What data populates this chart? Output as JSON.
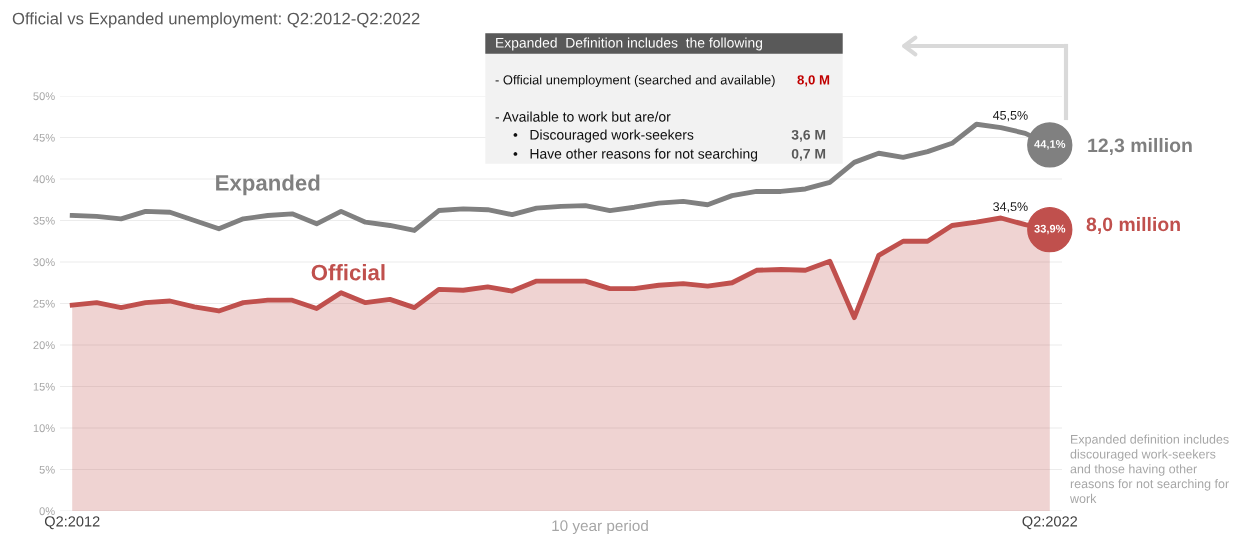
{
  "chart_data": {
    "type": "line",
    "title": "Official vs Expanded unemployment: Q2:2012-Q2:2022",
    "categories": [
      "Q2:2012",
      null,
      null,
      null,
      null,
      null,
      null,
      null,
      null,
      null,
      null,
      null,
      null,
      null,
      null,
      null,
      null,
      null,
      null,
      null,
      null,
      null,
      null,
      null,
      null,
      null,
      null,
      null,
      null,
      null,
      null,
      null,
      null,
      null,
      null,
      null,
      null,
      null,
      null,
      null,
      "Q2:2022"
    ],
    "series": [
      {
        "name": "Expanded",
        "color": "#808080",
        "values": [
          35.6,
          35.5,
          35.2,
          36.1,
          36.0,
          35.0,
          34.0,
          35.2,
          35.6,
          35.8,
          34.6,
          36.1,
          34.8,
          34.4,
          33.8,
          36.2,
          36.4,
          36.3,
          35.7,
          36.5,
          36.7,
          36.8,
          36.2,
          36.6,
          37.1,
          37.3,
          36.9,
          38.0,
          38.5,
          38.5,
          38.8,
          39.6,
          42.0,
          43.1,
          42.6,
          43.3,
          44.3,
          46.6,
          46.2,
          45.5,
          44.1
        ],
        "value_labels": [
          null,
          null,
          null,
          null,
          null,
          null,
          null,
          null,
          null,
          null,
          null,
          null,
          null,
          null,
          null,
          null,
          null,
          null,
          null,
          null,
          null,
          null,
          null,
          null,
          null,
          null,
          null,
          null,
          null,
          null,
          null,
          null,
          null,
          null,
          null,
          null,
          null,
          null,
          null,
          "45,5%",
          "44,1%"
        ]
      },
      {
        "name": "Official",
        "type": "area",
        "color": "#c0504d",
        "values": [
          24.8,
          25.1,
          24.5,
          25.1,
          25.3,
          24.6,
          24.1,
          25.1,
          25.4,
          25.4,
          24.4,
          26.3,
          25.1,
          25.5,
          24.5,
          26.7,
          26.6,
          27.0,
          26.5,
          27.7,
          27.7,
          27.7,
          26.8,
          26.8,
          27.2,
          27.4,
          27.1,
          27.5,
          29.0,
          29.1,
          29.0,
          30.1,
          23.3,
          30.8,
          32.5,
          32.5,
          34.4,
          34.8,
          35.3,
          34.5,
          33.9
        ],
        "value_labels": [
          null,
          null,
          null,
          null,
          null,
          null,
          null,
          null,
          null,
          null,
          null,
          null,
          null,
          null,
          null,
          null,
          null,
          null,
          null,
          null,
          null,
          null,
          null,
          null,
          null,
          null,
          null,
          null,
          null,
          null,
          null,
          null,
          null,
          null,
          null,
          null,
          null,
          null,
          null,
          "34,5%",
          "33,9%"
        ]
      }
    ],
    "ylim": [
      0,
      50
    ],
    "yticks": [
      {
        "value": 0,
        "label": "0%"
      },
      {
        "value": 5,
        "label": "5%"
      },
      {
        "value": 10,
        "label": "10%"
      },
      {
        "value": 15,
        "label": "15%"
      },
      {
        "value": 20,
        "label": "20%"
      },
      {
        "value": 25,
        "label": "25%"
      },
      {
        "value": 30,
        "label": "30%"
      },
      {
        "value": 35,
        "label": "35%"
      },
      {
        "value": 40,
        "label": "40%"
      },
      {
        "value": 45,
        "label": "45%"
      },
      {
        "value": 50,
        "label": "50%"
      }
    ],
    "grid": "y",
    "marker": "none",
    "line_style": "solid",
    "annotations": [
      "Expanded  Definition includes  the following",
      "- Official unemployment (searched and available)",
      "8,0 M",
      "- Available to work but are/or",
      "•   Discouraged work-seekers",
      "3,6 M",
      "•   Have other reasons for not searching",
      "0,7 M",
      "12,3 million",
      "8,0 million",
      "10 year period",
      "Expanded definition includes\ndiscouraged work-seekers\nand those having other\nreasons for not searching for\nwork"
    ]
  }
}
